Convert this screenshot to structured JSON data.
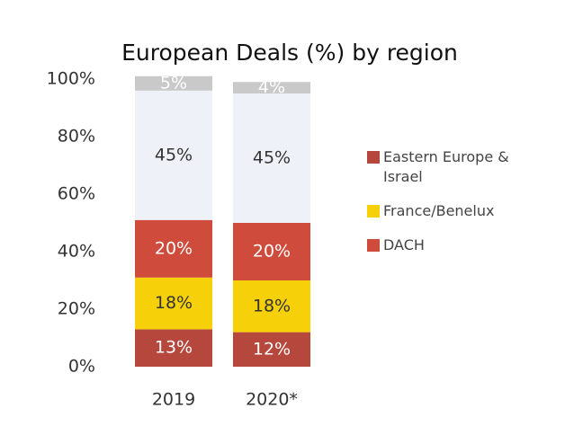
{
  "chart_data": {
    "type": "stacked_bar",
    "title": "European Deals (%) by region",
    "categories": [
      "2019",
      "2020*"
    ],
    "series": [
      {
        "name": "Eastern Europe & Israel",
        "color": "#b5473c",
        "values": [
          13,
          12
        ],
        "value_labels": [
          "13%",
          "12%"
        ]
      },
      {
        "name": "France/Benelux",
        "color": "#f6d10a",
        "values": [
          18,
          18
        ],
        "value_labels": [
          "18%",
          "18%"
        ]
      },
      {
        "name": "DACH",
        "color": "#cf4b3b",
        "values": [
          20,
          20
        ],
        "value_labels": [
          "20%",
          "20%"
        ]
      },
      {
        "color": "#eef1f8",
        "values": [
          45,
          45
        ],
        "value_labels": [
          "45%",
          "45%"
        ]
      },
      {
        "color": "#c9c9c9",
        "values": [
          5,
          4
        ],
        "value_labels": [
          "5%",
          "4%"
        ]
      }
    ],
    "ylim": [
      0,
      100
    ],
    "yticks": [
      {
        "value": 0,
        "label": "0%"
      },
      {
        "value": 20,
        "label": "20%"
      },
      {
        "value": 40,
        "label": "40%"
      },
      {
        "value": 60,
        "label": "60%"
      },
      {
        "value": 80,
        "label": "80%"
      },
      {
        "value": 100,
        "label": "100%"
      }
    ],
    "grid": false
  }
}
